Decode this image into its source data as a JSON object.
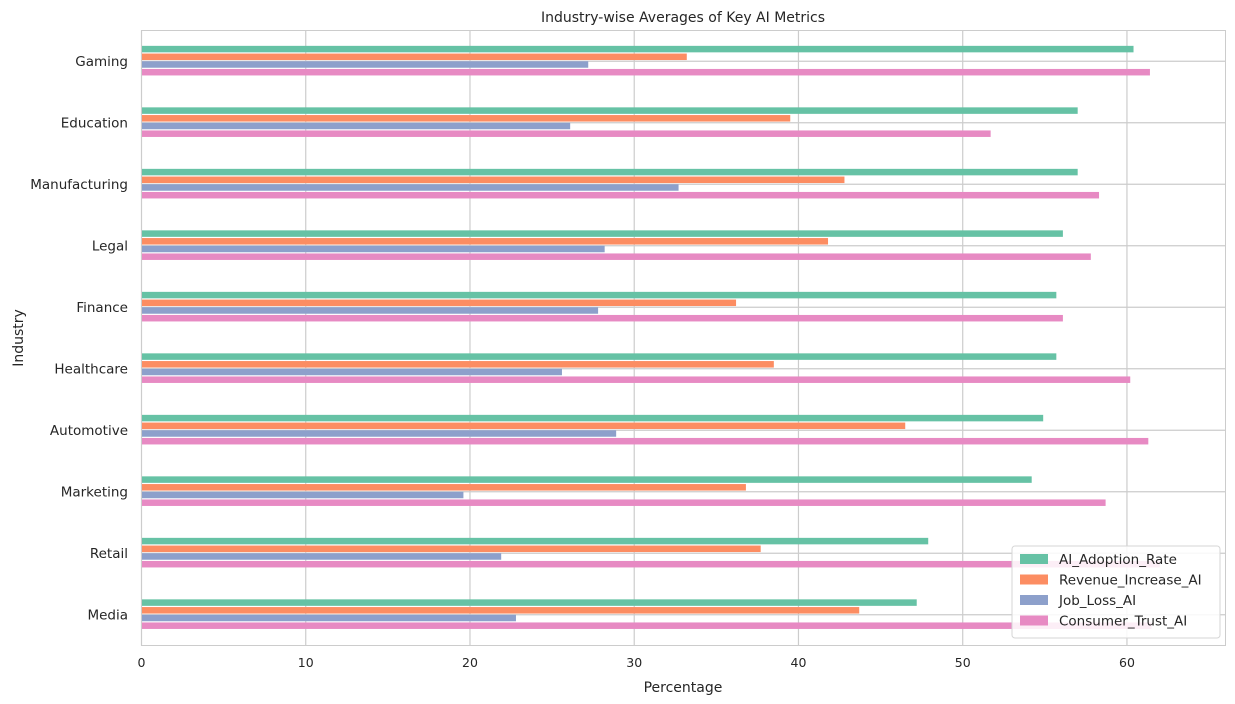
{
  "chart_data": {
    "type": "bar",
    "orientation": "horizontal",
    "title": "Industry-wise Averages of Key AI Metrics",
    "xlabel": "Percentage",
    "ylabel": "Industry",
    "xlim": [
      0,
      66
    ],
    "xticks": [
      0,
      10,
      20,
      30,
      40,
      50,
      60
    ],
    "grid": true,
    "legend_position": "lower right",
    "categories": [
      "Gaming",
      "Education",
      "Manufacturing",
      "Legal",
      "Finance",
      "Healthcare",
      "Automotive",
      "Marketing",
      "Retail",
      "Media"
    ],
    "series": [
      {
        "name": "AI_Adoption_Rate",
        "color": "#66c2a5",
        "values": [
          60.4,
          57.0,
          57.0,
          56.1,
          55.7,
          55.7,
          54.9,
          54.2,
          47.9,
          47.2
        ]
      },
      {
        "name": "Revenue_Increase_AI",
        "color": "#fc8d62",
        "values": [
          33.2,
          39.5,
          42.8,
          41.8,
          36.2,
          38.5,
          46.5,
          36.8,
          37.7,
          43.7
        ]
      },
      {
        "name": "Job_Loss_AI",
        "color": "#8da0cb",
        "values": [
          27.2,
          26.1,
          32.7,
          28.2,
          27.8,
          25.6,
          28.9,
          19.6,
          21.9,
          22.8
        ]
      },
      {
        "name": "Consumer_Trust_AI",
        "color": "#e78ac3",
        "values": [
          61.4,
          51.7,
          58.3,
          57.8,
          56.1,
          60.2,
          61.3,
          58.7,
          62.0,
          61.5
        ]
      }
    ]
  }
}
